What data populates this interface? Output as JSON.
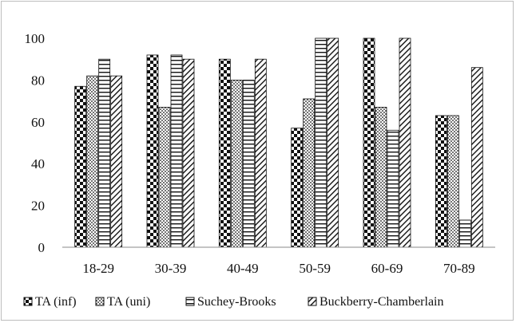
{
  "chart_data": {
    "type": "bar",
    "title": "",
    "xlabel": "",
    "ylabel": "",
    "ylim": [
      0,
      100
    ],
    "yticks": [
      0,
      20,
      40,
      60,
      80,
      100
    ],
    "grid": false,
    "legend_position": "bottom",
    "categories": [
      "18-29",
      "30-39",
      "40-49",
      "50-59",
      "60-69",
      "70-89"
    ],
    "series": [
      {
        "name": "TA (inf)",
        "pattern": "checker",
        "values": [
          77,
          92,
          90,
          57,
          100,
          63
        ]
      },
      {
        "name": "TA (uni)",
        "pattern": "dots",
        "values": [
          82,
          67,
          80,
          71,
          67,
          63
        ]
      },
      {
        "name": "Suchey-Brooks",
        "pattern": "horizontal-lines",
        "values": [
          90,
          92,
          80,
          100,
          56,
          13
        ]
      },
      {
        "name": "Buckberry-Chamberlain",
        "pattern": "diagonal-lines",
        "values": [
          82,
          90,
          90,
          100,
          100,
          86
        ]
      }
    ],
    "colors": {
      "ink": "#111111",
      "background": "#ffffff",
      "frame": "#bdbdbd"
    }
  }
}
